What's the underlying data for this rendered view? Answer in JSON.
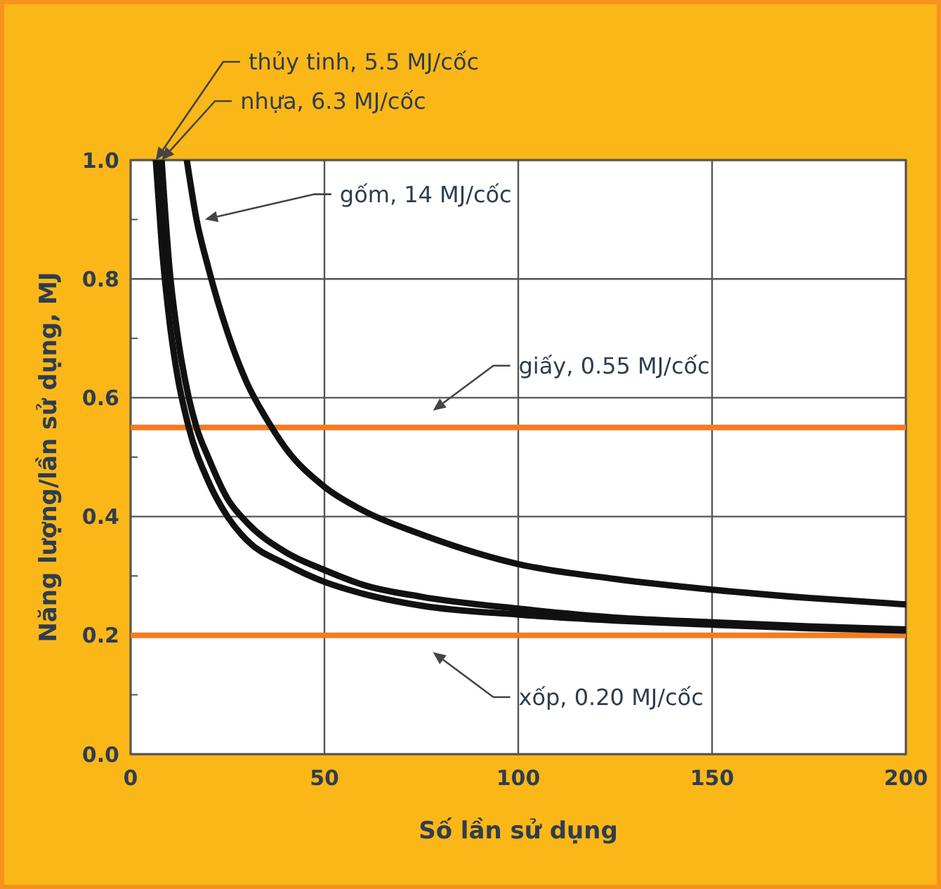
{
  "chart_data": {
    "type": "line",
    "xlabel": "Số lần sử dụng",
    "ylabel": "Năng lượng/lần sử dụng, MJ",
    "xlim": [
      0,
      200
    ],
    "xticks": [
      0,
      50,
      100,
      150,
      200
    ],
    "ylim": [
      0,
      1
    ],
    "yticks": [
      {
        "value": 0,
        "label": "0.0"
      },
      {
        "value": 0.2,
        "label": "0.2"
      },
      {
        "value": 0.4,
        "label": "0.4"
      },
      {
        "value": 0.6,
        "label": "0.6"
      },
      {
        "value": 0.8,
        "label": "0.8"
      },
      {
        "value": 1,
        "label": "1.0"
      }
    ],
    "grid": true,
    "marker": "none",
    "line_style": "solid",
    "series": [
      {
        "color": "#111111",
        "x": [
          6.5,
          8,
          10,
          12,
          15,
          20,
          25,
          30,
          40,
          50,
          60,
          75,
          100,
          125,
          150,
          175,
          200
        ],
        "values": [
          1.0,
          0.86,
          0.73,
          0.64,
          0.55,
          0.46,
          0.4,
          0.36,
          0.32,
          0.29,
          0.27,
          0.25,
          0.235,
          0.225,
          0.218,
          0.212,
          0.208
        ]
      },
      {
        "color": "#111111",
        "x": [
          8,
          10,
          12,
          15,
          17,
          20,
          25,
          30,
          40,
          50,
          60,
          75,
          100,
          125,
          150,
          175,
          200
        ],
        "values": [
          1.0,
          0.82,
          0.71,
          0.6,
          0.55,
          0.5,
          0.43,
          0.39,
          0.34,
          0.31,
          0.285,
          0.265,
          0.245,
          0.23,
          0.222,
          0.215,
          0.21
        ]
      },
      {
        "color": "#111111",
        "x": [
          14.5,
          17,
          20,
          25,
          30,
          35,
          40,
          50,
          60,
          75,
          100,
          125,
          150,
          175,
          200
        ],
        "values": [
          1.0,
          0.9,
          0.82,
          0.71,
          0.625,
          0.565,
          0.515,
          0.45,
          0.41,
          0.37,
          0.32,
          0.295,
          0.277,
          0.263,
          0.252
        ]
      }
    ],
    "ref_lines": [
      {
        "axis": "y",
        "value": 0.55,
        "label": "giấy, 0.55 MJ/cốc",
        "color": "#f47b20"
      },
      {
        "axis": "y",
        "value": 0.2,
        "label": "xốp, 0.20 MJ/cốc",
        "color": "#f47b20"
      }
    ],
    "annotations": [
      "thủy tinh, 5.5 MJ/cốc",
      "nhựa, 6.3 MJ/cốc",
      "gốm, 14 MJ/cốc"
    ]
  }
}
